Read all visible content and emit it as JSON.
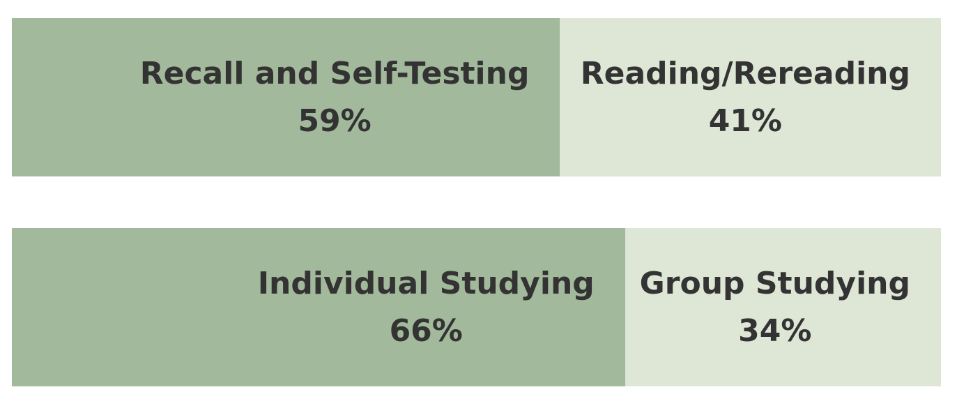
{
  "chart_data": {
    "type": "bar",
    "stacked": true,
    "orientation": "horizontal",
    "title": "",
    "xlabel": "",
    "ylabel": "",
    "xlim": [
      0,
      100
    ],
    "grid": false,
    "colors": {
      "primary": "#a3b99b",
      "secondary": "#dee6d6",
      "text": "#333333"
    },
    "bars": [
      {
        "segments": [
          {
            "label": "Recall and Self-Testing",
            "value": 59,
            "display": "59%"
          },
          {
            "label": "Reading/Rereading",
            "value": 41,
            "display": "41%"
          }
        ]
      },
      {
        "segments": [
          {
            "label": "Individual Studying",
            "value": 66,
            "display": "66%"
          },
          {
            "label": "Group Studying",
            "value": 34,
            "display": "34%"
          }
        ]
      }
    ]
  }
}
